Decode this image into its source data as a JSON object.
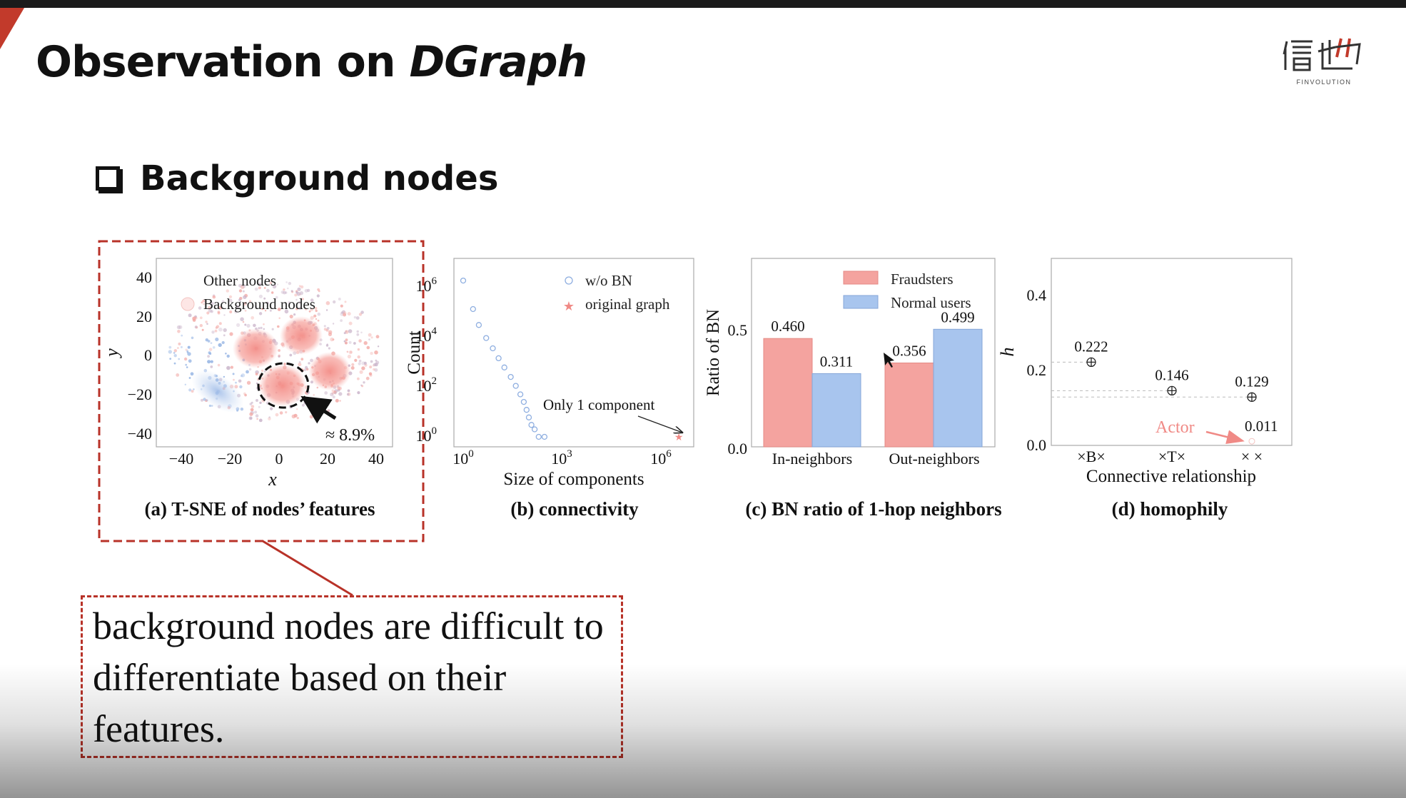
{
  "slide": {
    "title_prefix": "Observation on",
    "title_italic": "DGraph",
    "bullet": "Background nodes",
    "logo_sub": "FINVOLUTION",
    "callout": "background nodes are difficult to differentiate based on their features.",
    "colors": {
      "accent_red": "#b83228",
      "fraud": "#f4a39f",
      "normal": "#a8c5ee"
    }
  },
  "panels": {
    "a": {
      "caption": "(a)  T-SNE of nodes’ features",
      "legend": [
        "Other nodes",
        "Background nodes"
      ],
      "xlabel": "x",
      "ylabel": "y",
      "xticks": [
        "−40",
        "−20",
        "0",
        "20",
        "40"
      ],
      "yticks": [
        "40",
        "20",
        "0",
        "−20",
        "−40"
      ],
      "annotation": "≈ 8.9%"
    },
    "b": {
      "caption": "(b) connectivity",
      "legend": [
        "w/o BN",
        "original graph"
      ],
      "xlabel": "Size of components",
      "ylabel": "Count",
      "xticks": [
        "10",
        "10",
        "10"
      ],
      "xtick_exp": [
        "0",
        "3",
        "6"
      ],
      "yticks": [
        "10",
        "10",
        "10",
        "10"
      ],
      "ytick_exp": [
        "6",
        "4",
        "2",
        "0"
      ],
      "annotation": "Only 1 component"
    },
    "c": {
      "caption": "(c) BN ratio of 1-hop neighbors",
      "legend": [
        "Fraudsters",
        "Normal users"
      ],
      "ylabel": "Ratio of BN",
      "yticks": [
        "0.5",
        "0.0"
      ],
      "categories": [
        "In-neighbors",
        "Out-neighbors"
      ],
      "fraud_labels": [
        "0.460",
        "0.356"
      ],
      "normal_labels": [
        "0.311",
        "0.499"
      ]
    },
    "d": {
      "caption": "(d) homophily",
      "ylabel": "h",
      "xlabel": "Connective relationship",
      "yticks": [
        "0.4",
        "0.2",
        "0.0"
      ],
      "categories": [
        "×B×",
        "×T×",
        "× ×"
      ],
      "point_labels": [
        "0.222",
        "0.146",
        "0.129",
        "0.011"
      ],
      "annotation": "Actor"
    }
  },
  "chart_data": [
    {
      "type": "scatter",
      "title": "(a)  T-SNE of nodes’ features",
      "xlabel": "x",
      "ylabel": "y",
      "xlim": [
        -50,
        48
      ],
      "ylim": [
        -47,
        49
      ],
      "series": [
        {
          "name": "Other nodes"
        },
        {
          "name": "Background nodes"
        }
      ],
      "annotations": [
        "≈ 8.9%"
      ]
    },
    {
      "type": "scatter",
      "title": "(b) connectivity",
      "xlabel": "Size of components",
      "ylabel": "Count",
      "x_scale": "log",
      "y_scale": "log",
      "series": [
        {
          "name": "w/o BN",
          "x": [
            1,
            2,
            3,
            5,
            8,
            12,
            18,
            28,
            40,
            55,
            70,
            85,
            100,
            120,
            150,
            200,
            300
          ],
          "y": [
            1800000,
            130000,
            30000,
            9000,
            3500,
            1400,
            600,
            250,
            110,
            50,
            25,
            12,
            6,
            3,
            2,
            1,
            1
          ]
        },
        {
          "name": "original graph",
          "x": [
            3700000
          ],
          "y": [
            1
          ]
        }
      ],
      "annotations": [
        "Only 1 component"
      ]
    },
    {
      "type": "bar",
      "title": "(c) BN ratio of 1-hop neighbors",
      "categories": [
        "In-neighbors",
        "Out-neighbors"
      ],
      "ylabel": "Ratio of BN",
      "ylim": [
        0,
        0.65
      ],
      "series": [
        {
          "name": "Fraudsters",
          "values": [
            0.46,
            0.356
          ]
        },
        {
          "name": "Normal users",
          "values": [
            0.311,
            0.499
          ]
        }
      ]
    },
    {
      "type": "scatter",
      "title": "(d) homophily",
      "categories": [
        "×B×",
        "×T×",
        "× ×"
      ],
      "xlabel": "Connective relationship",
      "ylabel": "h",
      "ylim": [
        0,
        0.5
      ],
      "series": [
        {
          "values": [
            0.222,
            0.146,
            0.129
          ]
        },
        {
          "name": "Actor",
          "values": [
            null,
            null,
            0.011
          ]
        }
      ]
    }
  ]
}
